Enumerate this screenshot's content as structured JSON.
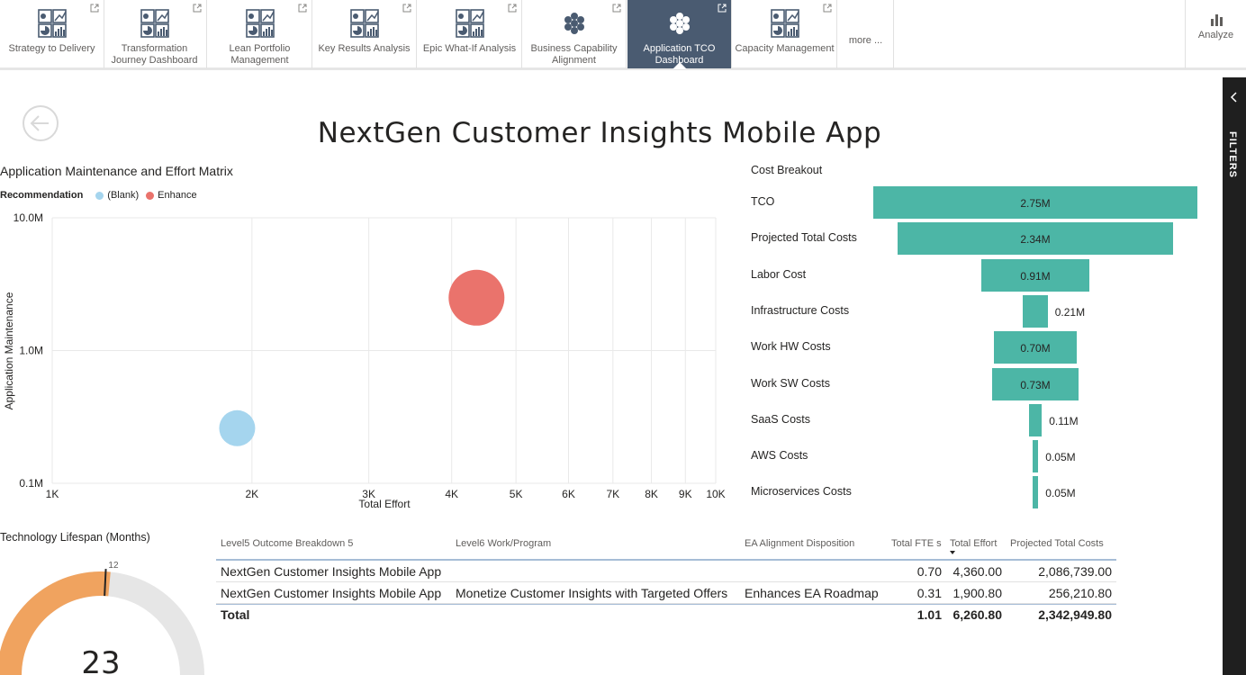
{
  "tabs": [
    {
      "label": "Strategy to Delivery",
      "icon": "dashboard-grid-icon",
      "active": false
    },
    {
      "label": "Transformation Journey Dashboard",
      "icon": "dashboard-grid-icon",
      "active": false
    },
    {
      "label": "Lean Portfolio Management",
      "icon": "dashboard-grid-icon",
      "active": false
    },
    {
      "label": "Key Results Analysis",
      "icon": "dashboard-grid-icon",
      "active": false
    },
    {
      "label": "Epic What-If Analysis",
      "icon": "dashboard-grid-icon",
      "active": false
    },
    {
      "label": "Business Capability Alignment",
      "icon": "hexagon-cluster-icon",
      "active": false
    },
    {
      "label": "Application TCO Dashboard",
      "icon": "hexagon-cluster-icon",
      "active": true
    },
    {
      "label": "Capacity Management",
      "icon": "dashboard-grid-icon",
      "active": false
    }
  ],
  "more_label": "more ...",
  "analyze_label": "Analyze",
  "filters_label": "FILTERS",
  "report_title": "NextGen Customer Insights Mobile App",
  "colors": {
    "teal": "#4cb6a6",
    "blank": "#a5d5ee",
    "enhance": "#ea736c",
    "orange": "#f0a35f",
    "active_tab": "#4a5b71"
  },
  "scatter": {
    "title": "Application Maintenance and Effort Matrix",
    "legend_title": "Recommendation",
    "legend": [
      {
        "name": "(Blank)",
        "color": "#a5d5ee"
      },
      {
        "name": "Enhance",
        "color": "#ea736c"
      }
    ]
  },
  "chart_data": [
    {
      "type": "scatter",
      "title": "Application Maintenance and Effort Matrix",
      "xlabel": "Total Effort",
      "ylabel": "Application Maintenance",
      "x_scale": "log",
      "y_scale": "log",
      "xlim": [
        1000,
        10000
      ],
      "ylim": [
        100000,
        10000000
      ],
      "x_ticks": [
        "1K",
        "2K",
        "3K",
        "4K",
        "5K",
        "6K",
        "7K",
        "8K",
        "9K",
        "10K"
      ],
      "y_ticks": [
        "0.1M",
        "1.0M",
        "10.0M"
      ],
      "grid": true,
      "legend_position": "top-left",
      "series": [
        {
          "name": "(Blank)",
          "x": [
            1900
          ],
          "y": [
            260000
          ]
        },
        {
          "name": "Enhance",
          "x": [
            4360
          ],
          "y": [
            2500000
          ]
        }
      ]
    },
    {
      "type": "bar",
      "subtype": "funnel",
      "title": "Cost Breakout",
      "categories": [
        "TCO",
        "Projected Total Costs",
        "Labor Cost",
        "Infrastructure Costs",
        "Work HW Costs",
        "Work SW Costs",
        "SaaS Costs",
        "AWS Costs",
        "Microservices Costs"
      ],
      "values": [
        2.75,
        2.34,
        0.91,
        0.21,
        0.7,
        0.73,
        0.11,
        0.05,
        0.05
      ],
      "labels": [
        "2.75M",
        "2.34M",
        "0.91M",
        "0.21M",
        "0.70M",
        "0.73M",
        "0.11M",
        "0.05M",
        "0.05M"
      ]
    },
    {
      "type": "pie",
      "subtype": "gauge",
      "title": "Technology Lifespan (Months)",
      "value": 23,
      "target": 12,
      "value_label": "23",
      "target_label": "12"
    }
  ],
  "table": {
    "headers": [
      "Level5 Outcome Breakdown 5",
      "Level6 Work/Program",
      "EA Alignment Disposition",
      "Total FTE s",
      "Total Effort",
      "Projected Total Costs"
    ],
    "rows": [
      [
        "NextGen Customer Insights Mobile App",
        "",
        "",
        "0.70",
        "4,360.00",
        "2,086,739.00"
      ],
      [
        "NextGen Customer Insights Mobile App",
        "Monetize Customer Insights with Targeted Offers",
        "Enhances EA Roadmap",
        "0.31",
        "1,900.80",
        "256,210.80"
      ]
    ],
    "total": [
      "Total",
      "",
      "",
      "1.01",
      "6,260.80",
      "2,342,949.80"
    ]
  }
}
